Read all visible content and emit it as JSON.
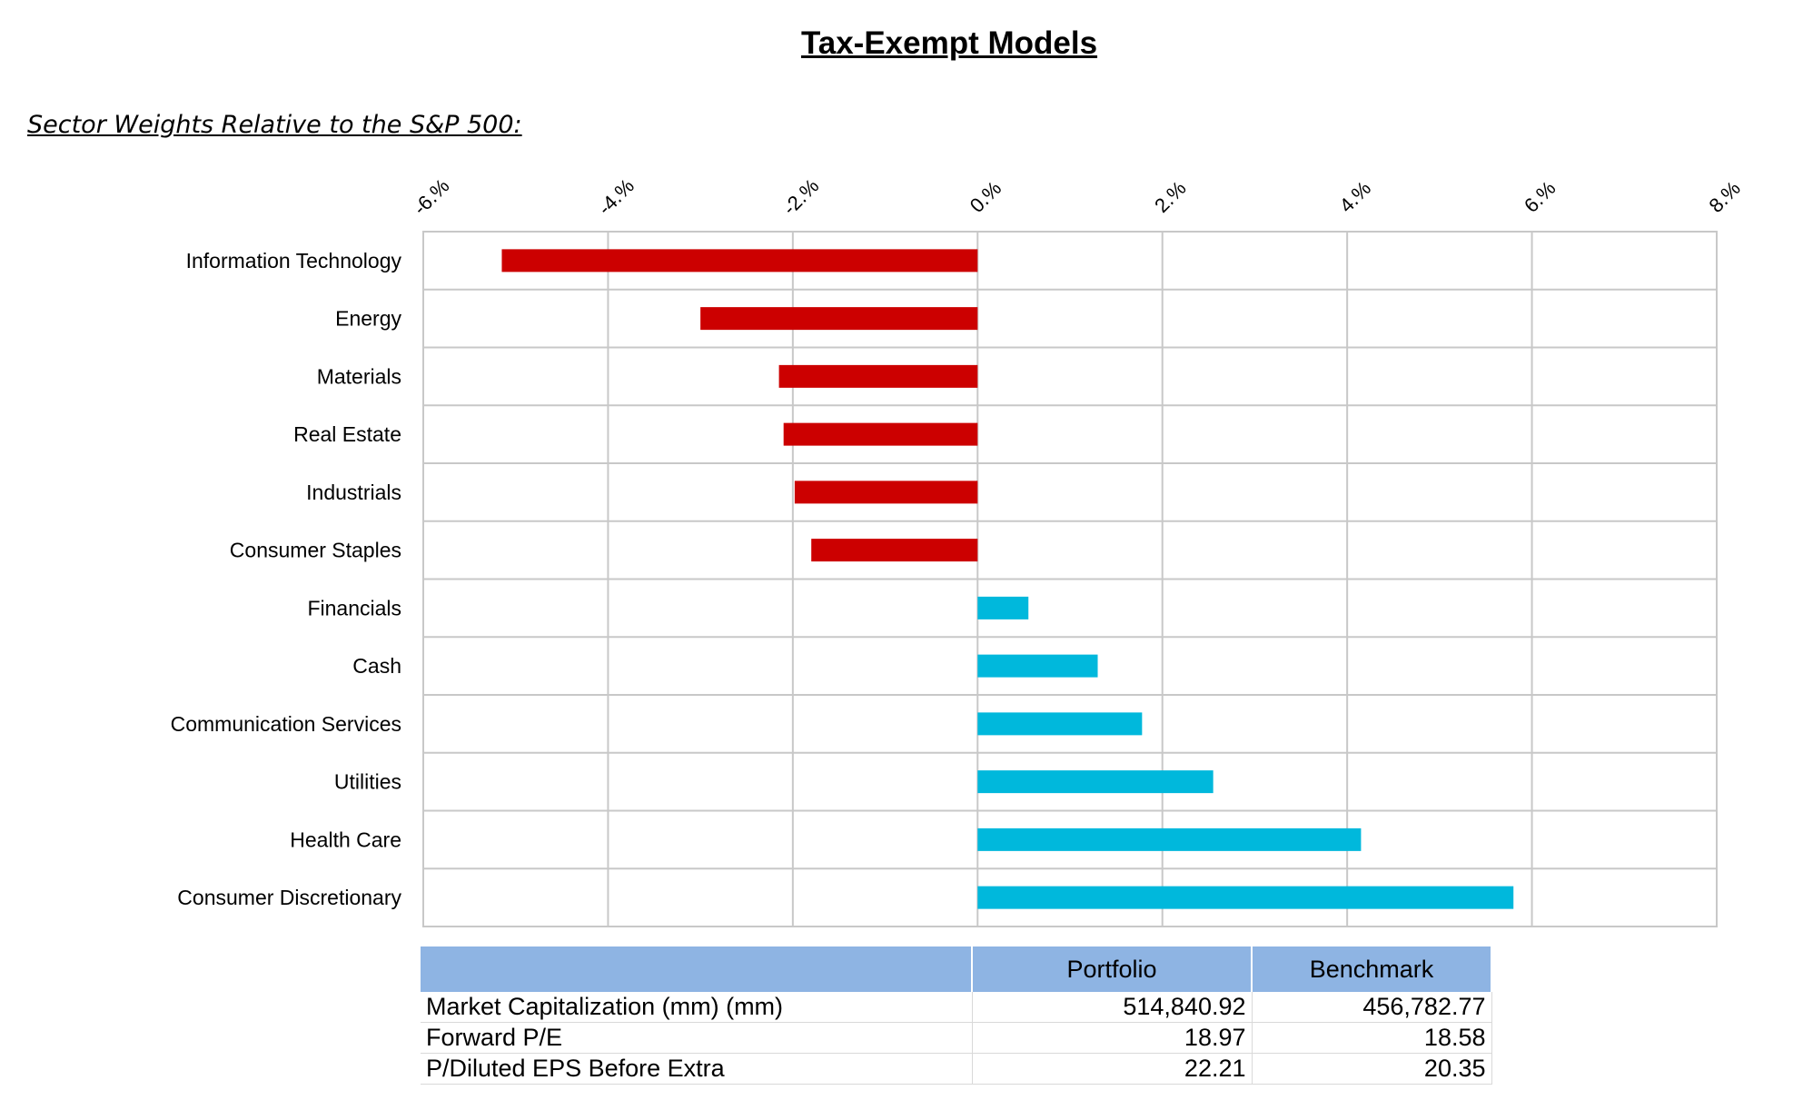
{
  "title": "Tax-Exempt Models",
  "subtitle": "Sector Weights Relative to the S&P 500:",
  "chart_data": {
    "type": "bar",
    "orientation": "horizontal",
    "xlim": [
      -6,
      8
    ],
    "x_ticks": [
      "-6.%",
      "-4.%",
      "-2.%",
      "0.%",
      "2.%",
      "4.%",
      "6.%",
      "8.%"
    ],
    "x_tick_values": [
      -6,
      -4,
      -2,
      0,
      2,
      4,
      6,
      8
    ],
    "grid": true,
    "categories": [
      "Information Technology",
      "Energy",
      "Materials",
      "Real Estate",
      "Industrials",
      "Consumer Staples",
      "Financials",
      "Cash",
      "Communication Services",
      "Utilities",
      "Health Care",
      "Consumer Discretionary"
    ],
    "values": [
      -5.15,
      -3.0,
      -2.15,
      -2.1,
      -1.98,
      -1.8,
      0.55,
      1.3,
      1.78,
      2.55,
      4.15,
      5.8
    ],
    "colors": {
      "negative": "#cc0000",
      "positive": "#00b8dc",
      "grid": "#c8c8c8"
    }
  },
  "stats_table": {
    "headers": [
      "",
      "Portfolio",
      "Benchmark"
    ],
    "header_color": "#8eb4e3",
    "rows": [
      {
        "metric": "Market Capitalization (mm) (mm)",
        "portfolio": "514,840.92",
        "benchmark": "456,782.77"
      },
      {
        "metric": "Forward P/E",
        "portfolio": "18.97",
        "benchmark": "18.58"
      },
      {
        "metric": "P/Diluted EPS Before Extra",
        "portfolio": "22.21",
        "benchmark": "20.35"
      }
    ]
  }
}
